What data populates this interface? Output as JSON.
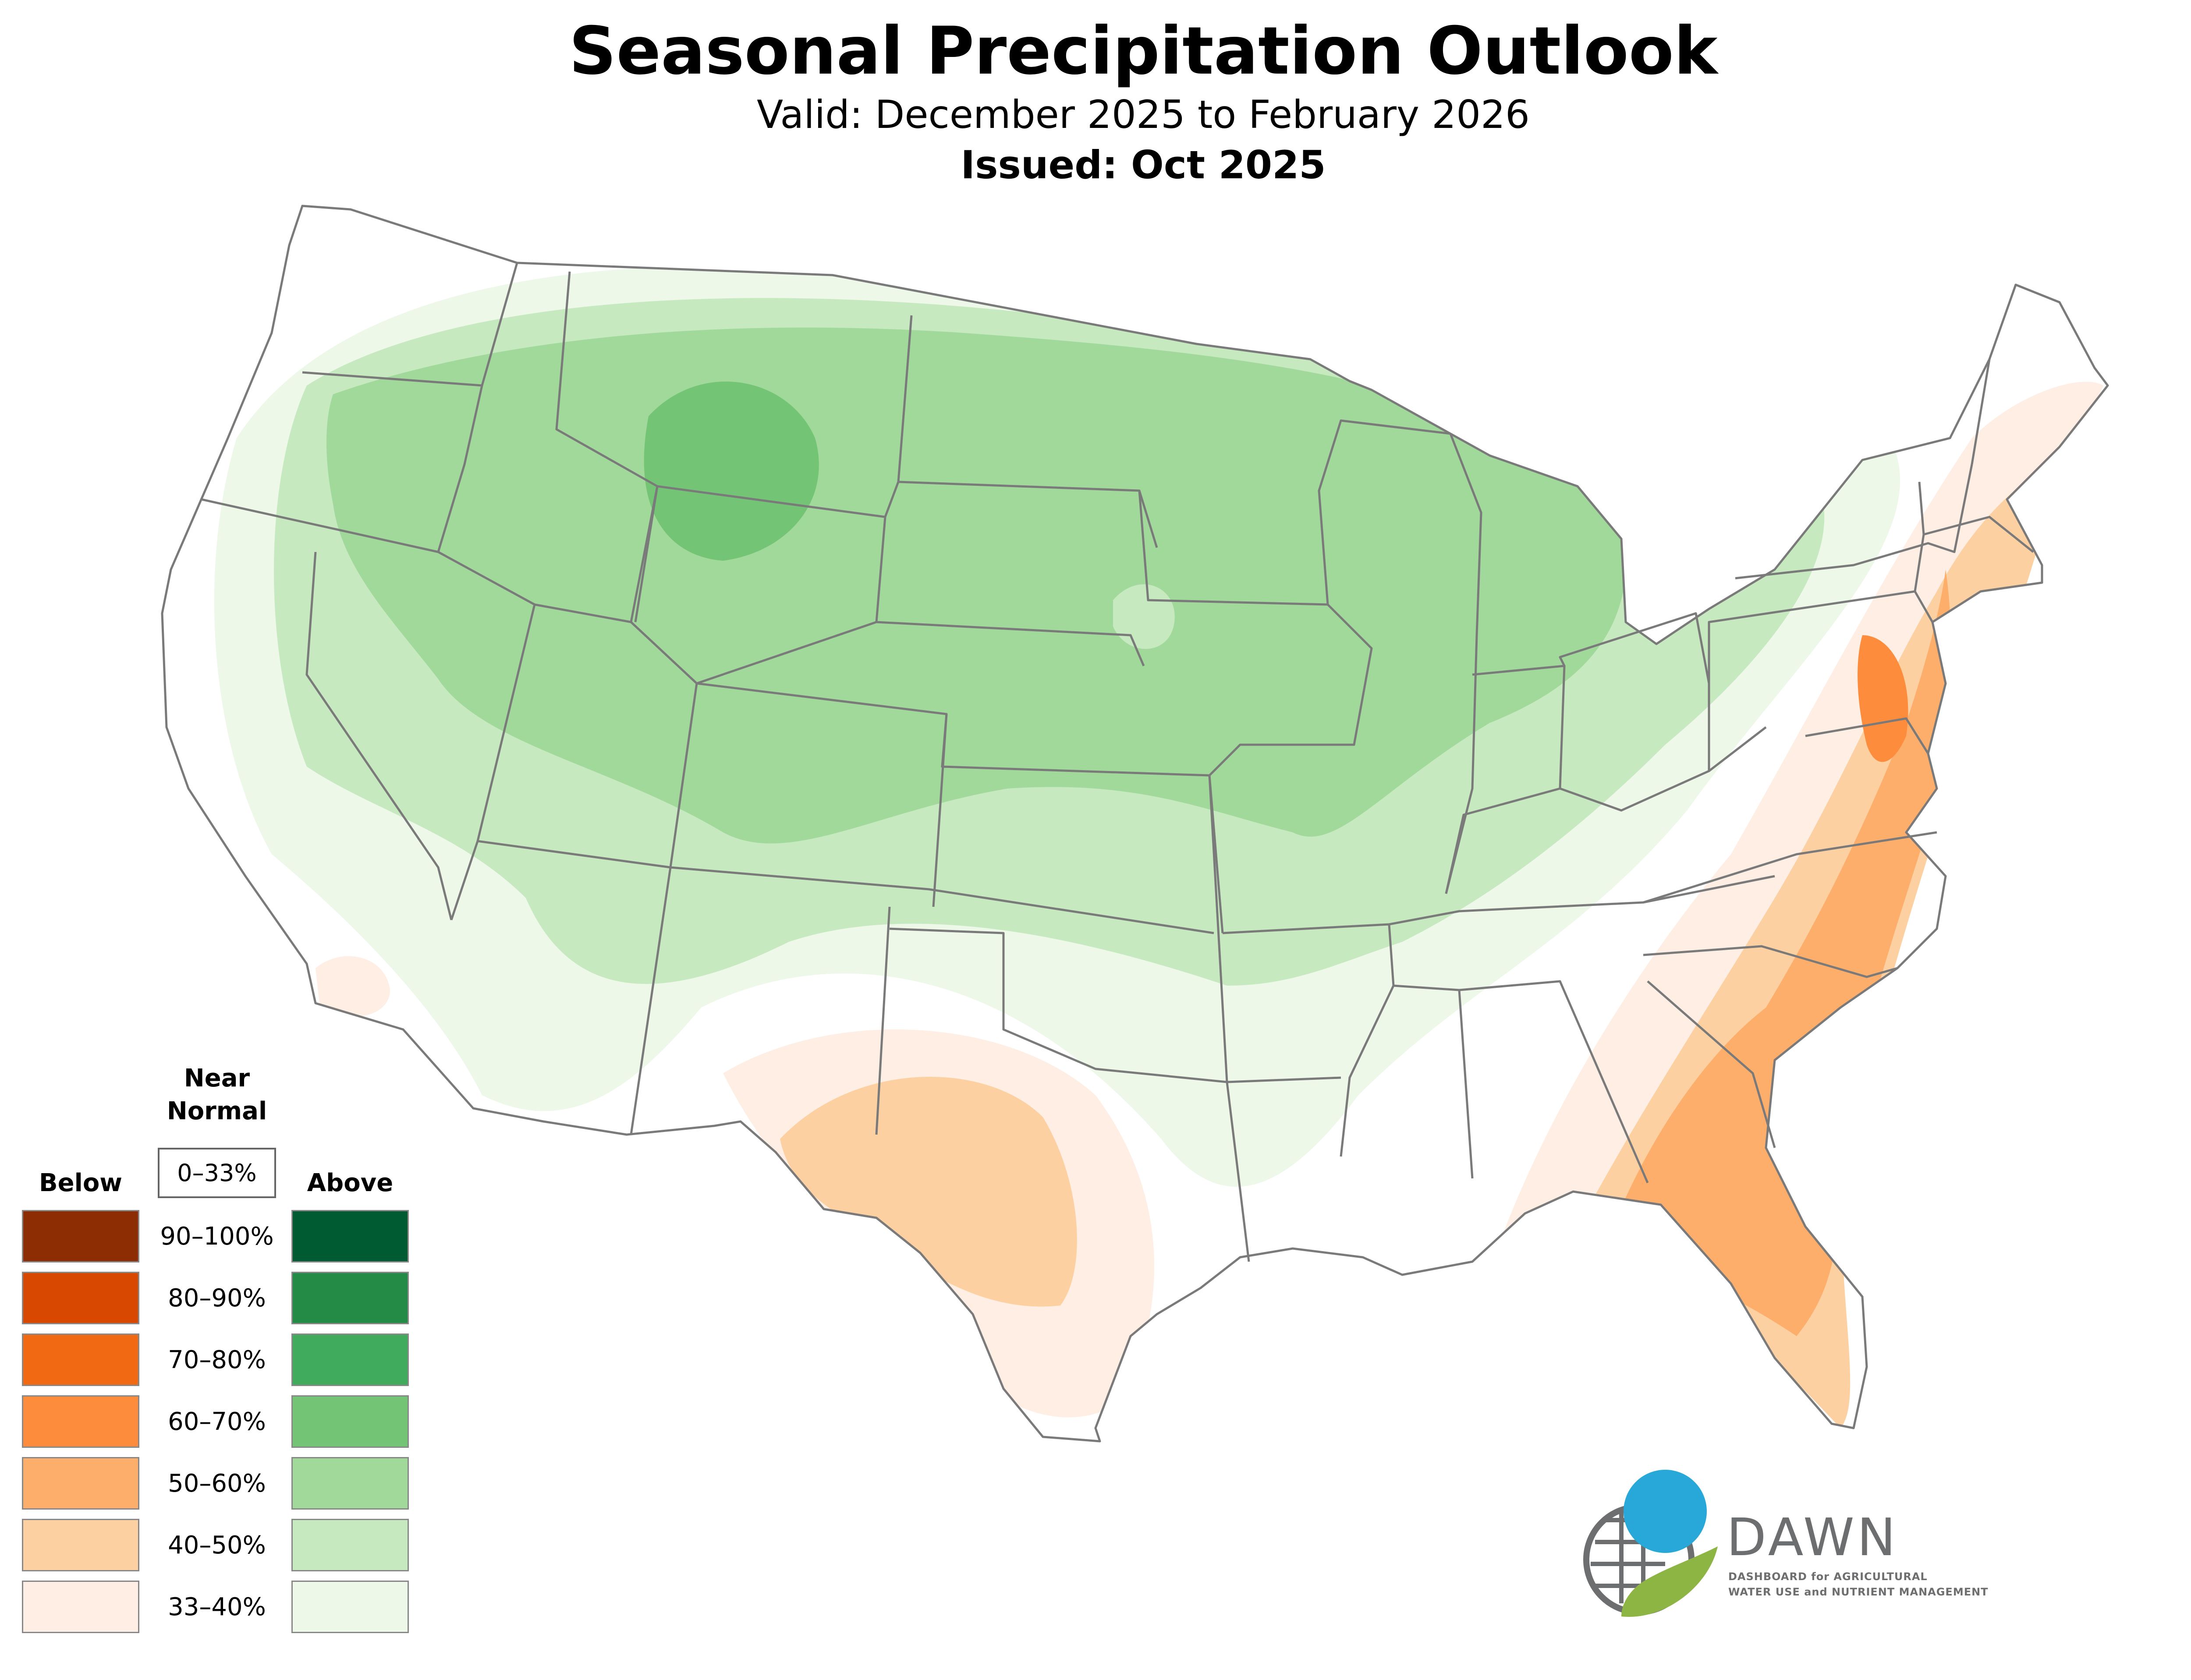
{
  "title": "Seasonal Precipitation Outlook",
  "subtitle": "Valid: December 2025 to February 2026",
  "issued": "Issued: Oct 2025",
  "legend": {
    "near_normal_heading": "Near Normal",
    "near_normal_range": "0–33%",
    "below_heading": "Below",
    "above_heading": "Above",
    "ranges": [
      "90–100%",
      "80–90%",
      "70–80%",
      "60–70%",
      "50–60%",
      "40–50%",
      "33–40%"
    ],
    "below_colors": [
      "#8c2d04",
      "#d94801",
      "#f16913",
      "#fd8d3c",
      "#fdae6b",
      "#fdd0a2",
      "#feeee3"
    ],
    "above_colors": [
      "#005a32",
      "#238b45",
      "#41ab5d",
      "#74c476",
      "#a1d99b",
      "#c7e9c0",
      "#edf8e9"
    ]
  },
  "logo": {
    "name": "DAWN",
    "line1": "DASHBOARD for AGRICULTURAL",
    "line2": "WATER USE and NUTRIENT MANAGEMENT"
  },
  "colors": {
    "state_border": "#7a7a7a",
    "logo_blue": "#27a8d8",
    "logo_green": "#8db543",
    "logo_gray": "#6d6e70"
  }
}
